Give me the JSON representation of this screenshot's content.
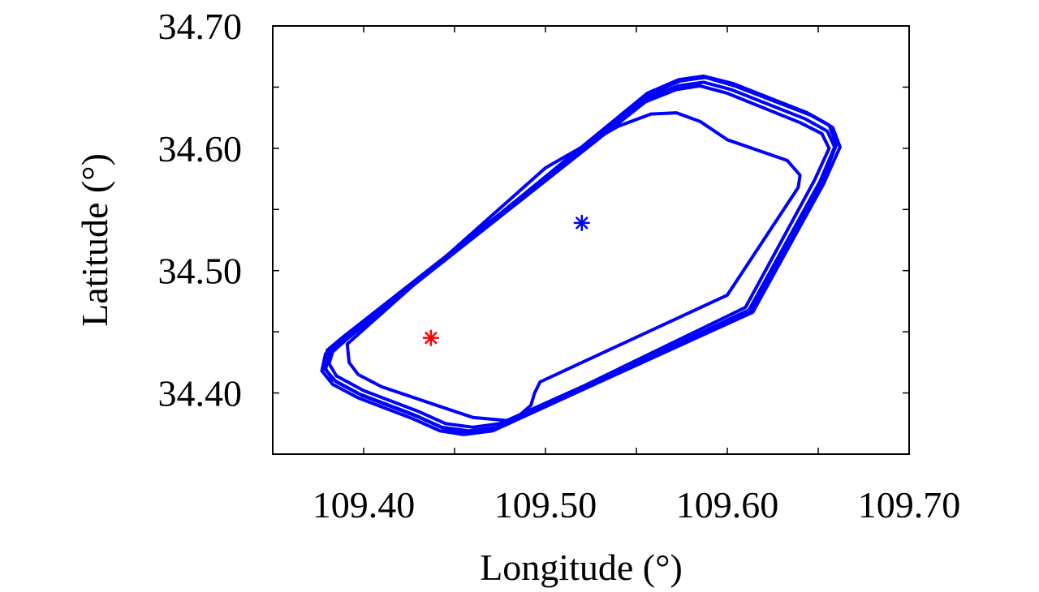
{
  "chart_data": {
    "type": "line",
    "title": "",
    "xlabel": "Longitude (°)",
    "ylabel": "Latitude (°)",
    "xlim": [
      109.35,
      109.7
    ],
    "ylim": [
      34.35,
      34.7
    ],
    "xticks": [
      109.4,
      109.5,
      109.6,
      109.7
    ],
    "xtick_labels": [
      "109.40",
      "109.50",
      "109.60",
      "109.70"
    ],
    "yticks": [
      34.4,
      34.5,
      34.6,
      34.7
    ],
    "ytick_labels": [
      "34.40",
      "34.50",
      "34.60",
      "34.70"
    ],
    "minor_xticks": [
      109.35,
      109.45,
      109.55,
      109.65
    ],
    "minor_yticks": [
      34.35,
      34.45,
      34.55,
      34.65
    ],
    "grid": false,
    "legend": "none",
    "series": [
      {
        "color": "#0000ff",
        "marker": "none",
        "loops": [
          [
            [
              109.389,
              34.443
            ],
            [
              109.383,
              34.434
            ],
            [
              109.381,
              34.424
            ],
            [
              109.385,
              34.414
            ],
            [
              109.4,
              34.402
            ],
            [
              109.43,
              34.385
            ],
            [
              109.445,
              34.375
            ],
            [
              109.46,
              34.372
            ],
            [
              109.475,
              34.375
            ],
            [
              109.52,
              34.405
            ],
            [
              109.61,
              34.47
            ],
            [
              109.648,
              34.574
            ],
            [
              109.656,
              34.6
            ],
            [
              109.652,
              34.612
            ],
            [
              109.64,
              34.621
            ],
            [
              109.6,
              34.645
            ],
            [
              109.585,
              34.651
            ],
            [
              109.572,
              34.648
            ],
            [
              109.555,
              34.638
            ],
            [
              109.389,
              34.443
            ]
          ],
          [
            [
              109.388,
              34.445
            ],
            [
              109.38,
              34.435
            ],
            [
              109.378,
              34.422
            ],
            [
              109.383,
              34.411
            ],
            [
              109.398,
              34.399
            ],
            [
              109.428,
              34.382
            ],
            [
              109.443,
              34.372
            ],
            [
              109.458,
              34.369
            ],
            [
              109.474,
              34.372
            ],
            [
              109.52,
              34.403
            ],
            [
              109.612,
              34.468
            ],
            [
              109.651,
              34.573
            ],
            [
              109.659,
              34.601
            ],
            [
              109.655,
              34.614
            ],
            [
              109.643,
              34.624
            ],
            [
              109.602,
              34.648
            ],
            [
              109.587,
              34.654
            ],
            [
              109.573,
              34.651
            ],
            [
              109.556,
              34.641
            ],
            [
              109.388,
              34.445
            ]
          ],
          [
            [
              109.389,
              34.444
            ],
            [
              109.379,
              34.432
            ],
            [
              109.377,
              34.418
            ],
            [
              109.383,
              34.407
            ],
            [
              109.397,
              34.396
            ],
            [
              109.427,
              34.379
            ],
            [
              109.442,
              34.369
            ],
            [
              109.455,
              34.366
            ],
            [
              109.471,
              34.369
            ],
            [
              109.518,
              34.401
            ],
            [
              109.614,
              34.466
            ],
            [
              109.653,
              34.571
            ],
            [
              109.662,
              34.601
            ],
            [
              109.658,
              34.617
            ],
            [
              109.646,
              34.627
            ],
            [
              109.604,
              34.651
            ],
            [
              109.588,
              34.658
            ],
            [
              109.574,
              34.655
            ],
            [
              109.557,
              34.644
            ],
            [
              109.389,
              34.444
            ]
          ],
          [
            [
              109.39,
              34.443
            ],
            [
              109.381,
              34.431
            ],
            [
              109.379,
              34.419
            ],
            [
              109.385,
              34.409
            ],
            [
              109.399,
              34.398
            ],
            [
              109.429,
              34.381
            ],
            [
              109.444,
              34.371
            ],
            [
              109.457,
              34.368
            ],
            [
              109.472,
              34.371
            ],
            [
              109.519,
              34.402
            ],
            [
              109.613,
              34.467
            ],
            [
              109.652,
              34.572
            ],
            [
              109.66,
              34.603
            ],
            [
              109.656,
              34.619
            ],
            [
              109.644,
              34.629
            ],
            [
              109.603,
              34.653
            ],
            [
              109.587,
              34.659
            ],
            [
              109.573,
              34.656
            ],
            [
              109.556,
              34.645
            ],
            [
              109.39,
              34.443
            ]
          ],
          [
            [
              109.391,
              34.44
            ],
            [
              109.392,
              34.425
            ],
            [
              109.397,
              34.415
            ],
            [
              109.41,
              34.405
            ],
            [
              109.44,
              34.39
            ],
            [
              109.46,
              34.38
            ],
            [
              109.482,
              34.377
            ],
            [
              109.492,
              34.39
            ],
            [
              109.494,
              34.4
            ],
            [
              109.497,
              34.409
            ],
            [
              109.51,
              34.418
            ],
            [
              109.6,
              34.48
            ],
            [
              109.639,
              34.568
            ],
            [
              109.64,
              34.578
            ],
            [
              109.633,
              34.59
            ],
            [
              109.6,
              34.607
            ],
            [
              109.585,
              34.622
            ],
            [
              109.572,
              34.629
            ],
            [
              109.558,
              34.628
            ],
            [
              109.54,
              34.618
            ],
            [
              109.5,
              34.584
            ],
            [
              109.391,
              34.44
            ]
          ]
        ]
      }
    ],
    "markers": [
      {
        "x": 109.437,
        "y": 34.445,
        "symbol": "*",
        "color": "#ff0000"
      },
      {
        "x": 109.52,
        "y": 34.539,
        "symbol": "*",
        "color": "#0000ff"
      }
    ]
  }
}
